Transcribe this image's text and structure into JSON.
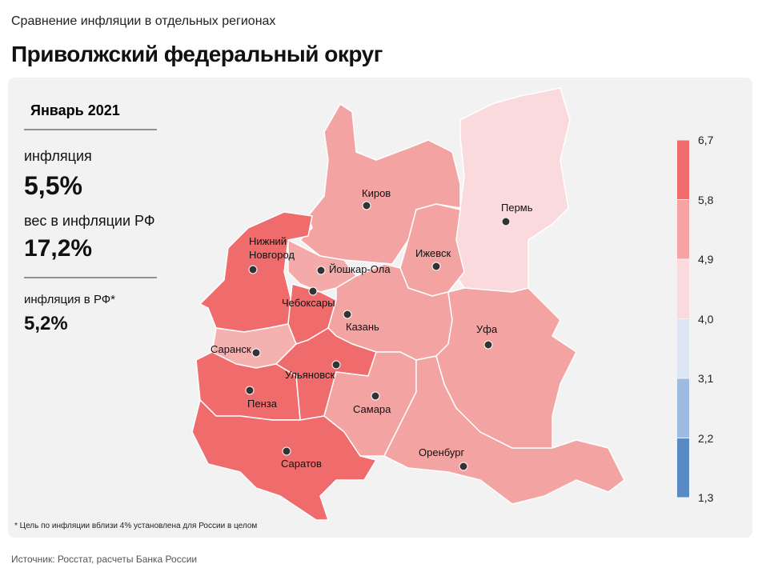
{
  "header": {
    "subtitle": "Сравнение инфляции  в отдельных регионах",
    "title": "Приволжский федеральный округ"
  },
  "panel": {
    "period": "Январь 2021",
    "inflation_label": "инфляция",
    "inflation_value": "5,5%",
    "weight_label": "вес в инфляции  РФ",
    "weight_value": "17,2%",
    "rf_label": "инфляция  в РФ*",
    "rf_value": "5,2%"
  },
  "regions": [
    {
      "name": "Пермь",
      "color": "#fadadd"
    },
    {
      "name": "Киров",
      "color": "#f4a3a3"
    },
    {
      "name": "Ижевск",
      "color": "#f4a3a3"
    },
    {
      "name": "Нижний Новгород",
      "color": "#f06b6b"
    },
    {
      "name": "Йошкар-Ола",
      "color": "#f5aaaa"
    },
    {
      "name": "Чебоксары",
      "color": "#f06b6b"
    },
    {
      "name": "Казань",
      "color": "#f4a3a3"
    },
    {
      "name": "Саранск",
      "color": "#f5b0b0"
    },
    {
      "name": "Ульяновск",
      "color": "#f06b6b"
    },
    {
      "name": "Пенза",
      "color": "#f06b6b"
    },
    {
      "name": "Самара",
      "color": "#f4a3a3"
    },
    {
      "name": "Саратов",
      "color": "#f06b6b"
    },
    {
      "name": "Оренбург",
      "color": "#f4a3a3"
    },
    {
      "name": "Уфа",
      "color": "#f4a3a3"
    }
  ],
  "legend": {
    "ticks": [
      {
        "value": 6.7,
        "label": "6,7"
      },
      {
        "value": 5.8,
        "label": "5,8"
      },
      {
        "value": 4.9,
        "label": "4,9"
      },
      {
        "value": 4.0,
        "label": "4,0"
      },
      {
        "value": 3.1,
        "label": "3,1"
      },
      {
        "value": 2.2,
        "label": "2,2"
      },
      {
        "value": 1.3,
        "label": "1,3"
      }
    ],
    "colors": [
      "#f06b6b",
      "#f5a3a3",
      "#fadadd",
      "#dde4f2",
      "#9dbadf",
      "#5a8ac6"
    ]
  },
  "footnote": "* Цель по инфляции вблизи 4% установлена для России в целом",
  "source": "Источник: Росстат, расчеты Банка России"
}
